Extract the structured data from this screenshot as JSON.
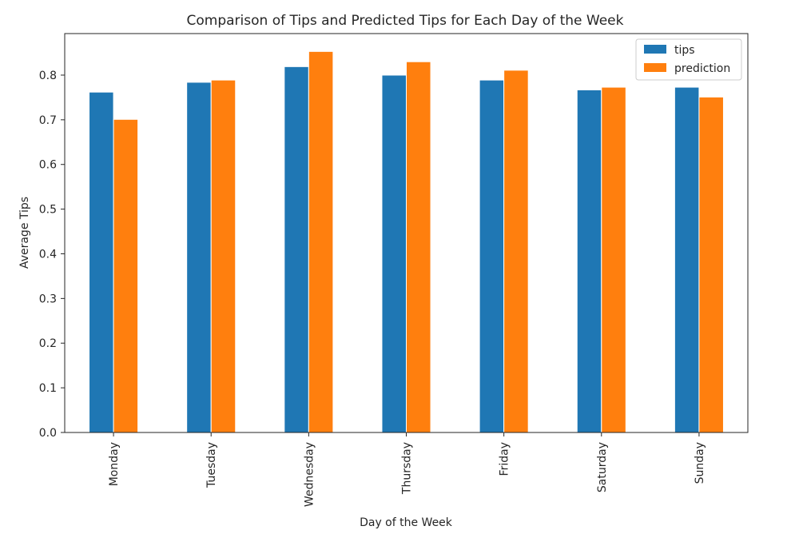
{
  "chart_data": {
    "type": "bar",
    "title": "Comparison of Tips and Predicted Tips for Each Day of the Week",
    "xlabel": "Day of the Week",
    "ylabel": "Average Tips",
    "categories": [
      "Monday",
      "Tuesday",
      "Wednesday",
      "Thursday",
      "Friday",
      "Saturday",
      "Sunday"
    ],
    "series": [
      {
        "name": "tips",
        "color": "#1f77b4",
        "values": [
          0.762,
          0.784,
          0.819,
          0.8,
          0.789,
          0.767,
          0.773
        ]
      },
      {
        "name": "prediction",
        "color": "#ff7f0e",
        "values": [
          0.701,
          0.789,
          0.853,
          0.83,
          0.811,
          0.773,
          0.751
        ]
      }
    ],
    "ylim": [
      0,
      0.893
    ],
    "yticks": [
      "0.0",
      "0.1",
      "0.2",
      "0.3",
      "0.4",
      "0.5",
      "0.6",
      "0.7",
      "0.8"
    ],
    "x_tick_rotation": "vertical",
    "grid": false,
    "legend_position": "top-right"
  }
}
